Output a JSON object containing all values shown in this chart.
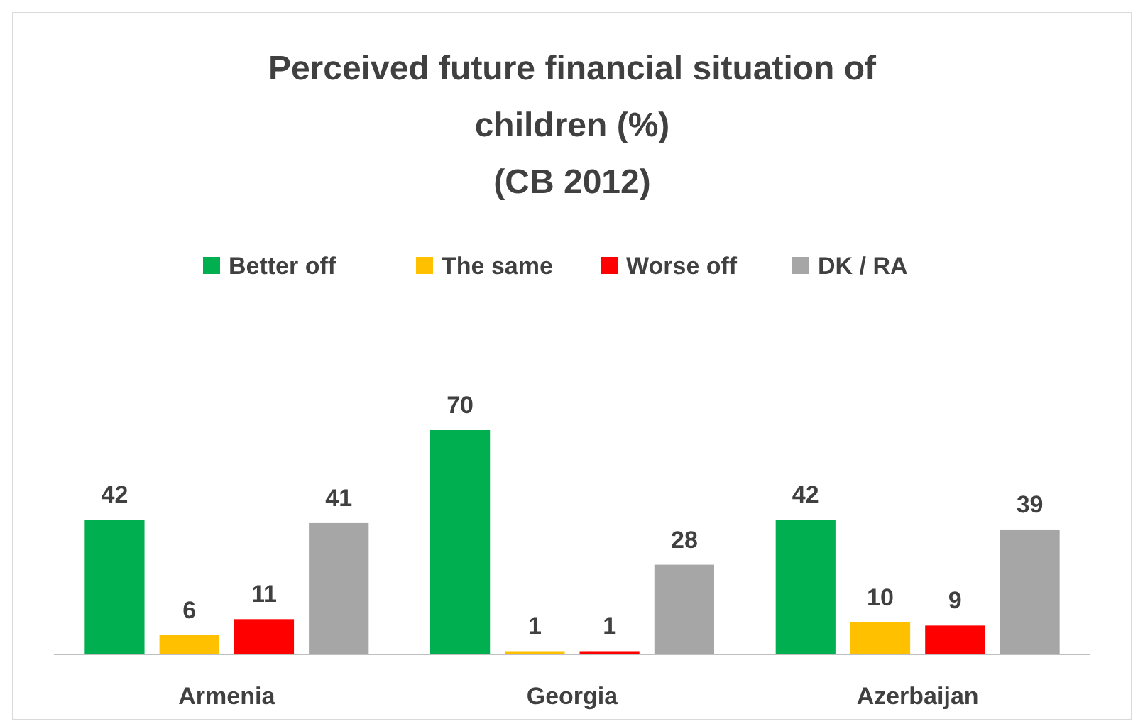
{
  "chart_data": {
    "type": "bar",
    "title": "Perceived future financial situation of children (%)\n(CB 2012)",
    "categories": [
      "Armenia",
      "Georgia",
      "Azerbaijan"
    ],
    "series": [
      {
        "name": "Better off",
        "color": "#00b050",
        "values": [
          42,
          70,
          42
        ]
      },
      {
        "name": "The same",
        "color": "#ffc000",
        "values": [
          6,
          1,
          10
        ]
      },
      {
        "name": "Worse off",
        "color": "#ff0000",
        "values": [
          11,
          1,
          9
        ]
      },
      {
        "name": "DK / RA",
        "color": "#a6a6a6",
        "values": [
          41,
          28,
          39
        ]
      }
    ],
    "data_labels": true,
    "legend": "top"
  }
}
